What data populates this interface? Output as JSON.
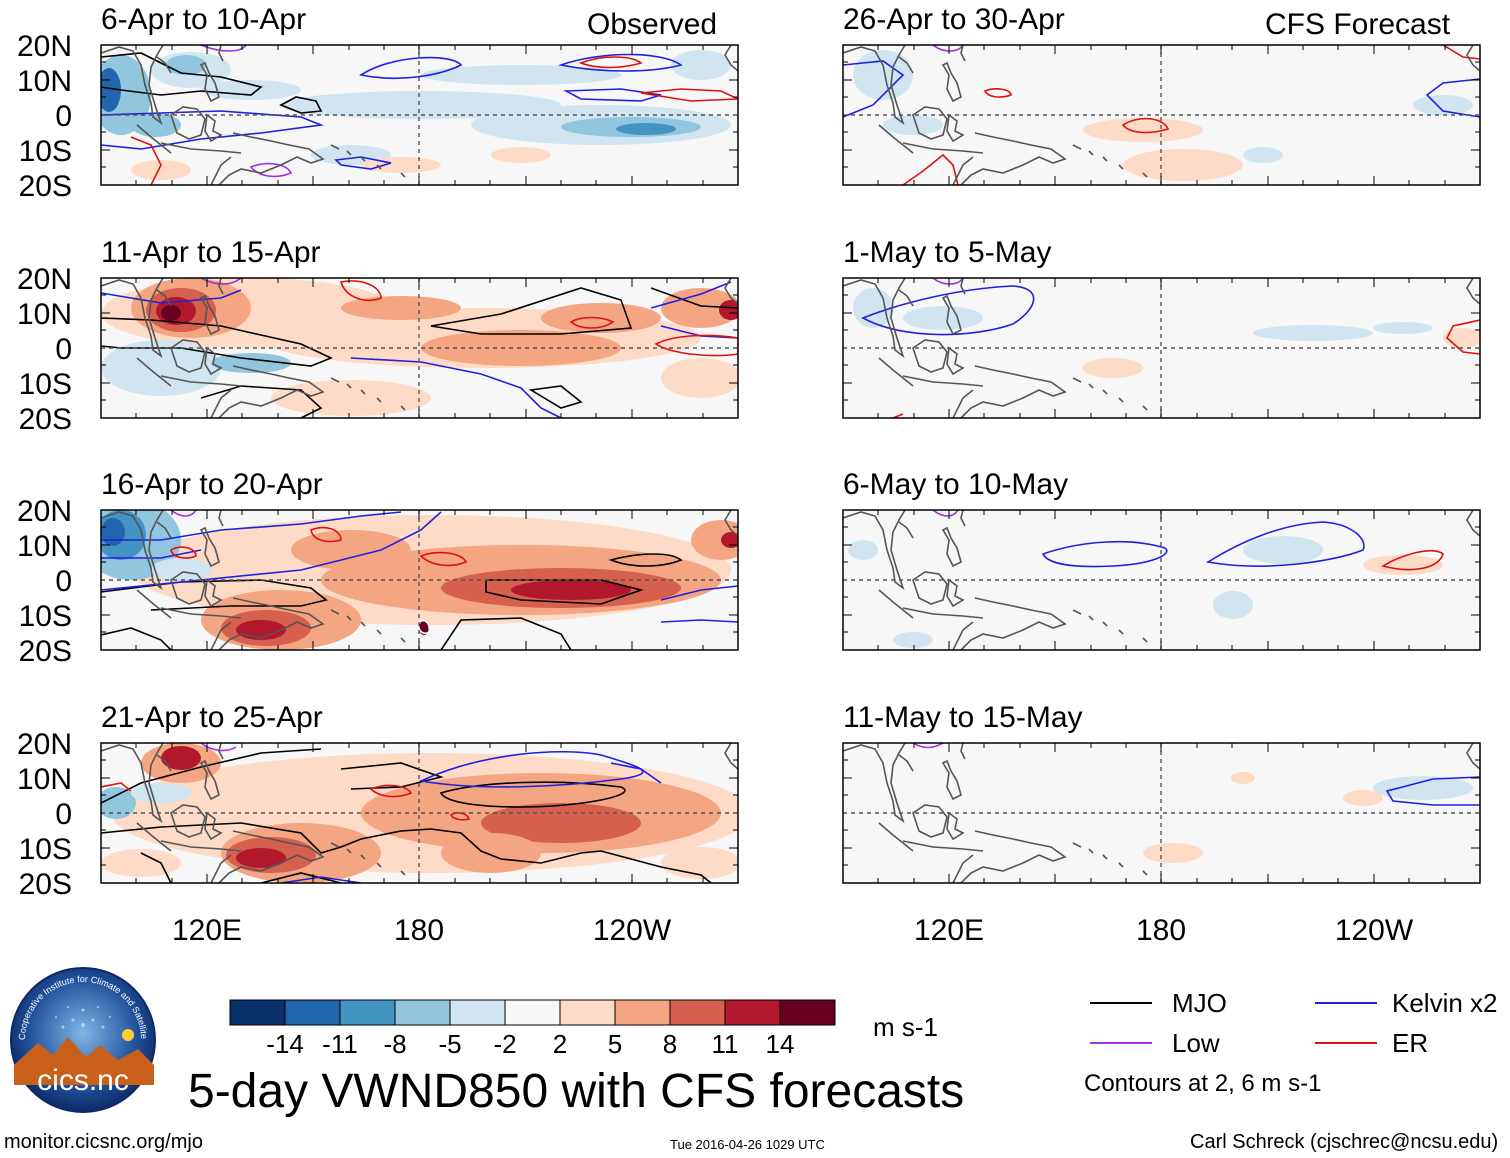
{
  "headers": {
    "left": "Observed",
    "right": "CFS Forecast"
  },
  "panels": [
    {
      "id": "obs-1",
      "title": "6-Apr to 10-Apr"
    },
    {
      "id": "obs-2",
      "title": "11-Apr to 15-Apr"
    },
    {
      "id": "obs-3",
      "title": "16-Apr to 20-Apr"
    },
    {
      "id": "obs-4",
      "title": "21-Apr to 25-Apr"
    },
    {
      "id": "fc-1",
      "title": "26-Apr to 30-Apr"
    },
    {
      "id": "fc-2",
      "title": "1-May to 5-May"
    },
    {
      "id": "fc-3",
      "title": "6-May to 10-May"
    },
    {
      "id": "fc-4",
      "title": "11-May to 15-May"
    }
  ],
  "lat_labels": [
    "20N",
    "10N",
    "0",
    "10S",
    "20S"
  ],
  "lon_labels": [
    "120E",
    "180",
    "120W"
  ],
  "colorbar": {
    "colors": [
      "#08306b",
      "#2166ac",
      "#4393c3",
      "#92c5de",
      "#d1e5f0",
      "#f7f7f7",
      "#fddbc7",
      "#f4a582",
      "#d6604d",
      "#b2182b",
      "#67001f"
    ],
    "tick_labels": [
      "-14",
      "-11",
      "-8",
      "-5",
      "-2",
      "2",
      "5",
      "8",
      "11",
      "14"
    ],
    "units": "m s-1"
  },
  "legend": {
    "items": [
      {
        "label": "MJO",
        "color": "#000000"
      },
      {
        "label": "Kelvin x2",
        "color": "#1f1fe0"
      },
      {
        "label": "Low",
        "color": "#a030e0"
      },
      {
        "label": "ER",
        "color": "#e01010"
      }
    ],
    "note": "Contours at 2, 6 m s-1"
  },
  "main_title": "5-day VWND850 with CFS forecasts",
  "logo_text": "cics.nc",
  "logo_ring_text": "Cooperative Institute for Climate and Satellites",
  "footer": {
    "website": "monitor.cicsnc.org/mjo",
    "timestamp": "Tue 2016-04-26 1029 UTC",
    "author": "Carl Schreck (cjschrec@ncsu.edu)"
  }
}
